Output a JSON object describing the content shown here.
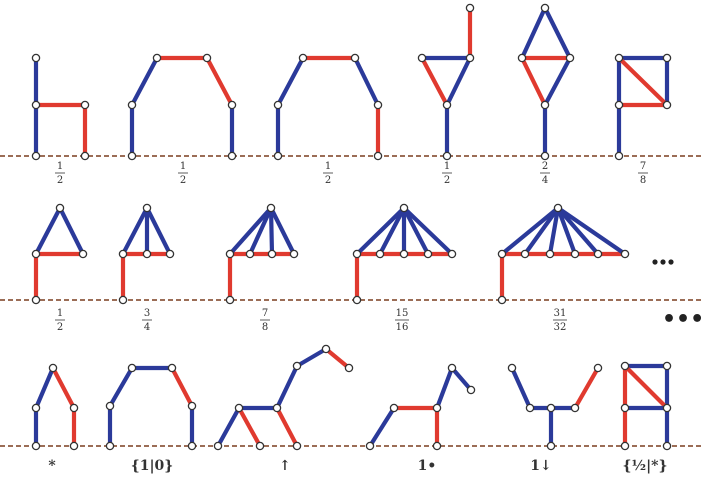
{
  "colors": {
    "blue": "#2b3a9a",
    "red": "#e03a2f",
    "ground": "#7a3d1e",
    "node_fill": "#ffffff",
    "node_stroke": "#333333"
  },
  "rows": [
    {
      "labels": [
        {
          "num": "1",
          "den": "2"
        },
        {
          "num": "1",
          "den": "2"
        },
        {
          "num": "1",
          "den": "2"
        },
        {
          "num": "1",
          "den": "2"
        },
        {
          "num": "2",
          "den": "4"
        },
        {
          "num": "7",
          "den": "8"
        }
      ]
    },
    {
      "labels": [
        {
          "num": "1",
          "den": "2"
        },
        {
          "num": "3",
          "den": "4"
        },
        {
          "num": "7",
          "den": "8"
        },
        {
          "num": "15",
          "den": "16"
        },
        {
          "num": "31",
          "den": "32"
        }
      ],
      "ellipsis": "•••"
    },
    {
      "labels": [
        {
          "text": "*"
        },
        {
          "text": "{1|0}"
        },
        {
          "text": "↑"
        },
        {
          "text": "1•"
        },
        {
          "text": "1↓"
        },
        {
          "text": "{½|*}"
        }
      ]
    }
  ]
}
